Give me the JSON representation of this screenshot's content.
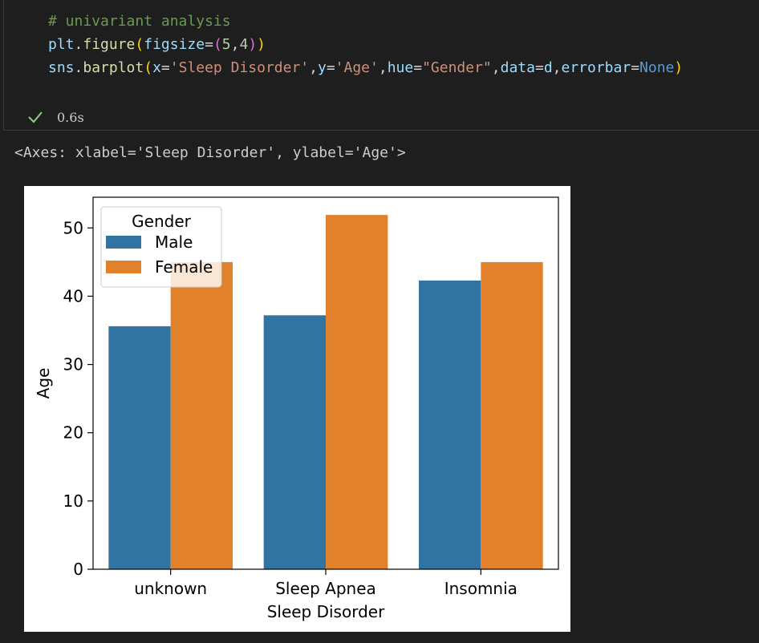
{
  "cell": {
    "code_lines": [
      [
        {
          "t": "# univariant analysis",
          "c": "comment"
        }
      ],
      [
        {
          "t": "plt",
          "c": "var"
        },
        {
          "t": ".",
          "c": "op"
        },
        {
          "t": "figure",
          "c": "func"
        },
        {
          "t": "(",
          "c": "paren1"
        },
        {
          "t": "figsize",
          "c": "var"
        },
        {
          "t": "=",
          "c": "op"
        },
        {
          "t": "(",
          "c": "paren2"
        },
        {
          "t": "5",
          "c": "num"
        },
        {
          "t": ",",
          "c": "op"
        },
        {
          "t": "4",
          "c": "num"
        },
        {
          "t": ")",
          "c": "paren2"
        },
        {
          "t": ")",
          "c": "paren1"
        }
      ],
      [
        {
          "t": "sns",
          "c": "var"
        },
        {
          "t": ".",
          "c": "op"
        },
        {
          "t": "barplot",
          "c": "func"
        },
        {
          "t": "(",
          "c": "paren1"
        },
        {
          "t": "x",
          "c": "var"
        },
        {
          "t": "=",
          "c": "op"
        },
        {
          "t": "'Sleep Disorder'",
          "c": "str"
        },
        {
          "t": ",",
          "c": "op"
        },
        {
          "t": "y",
          "c": "var"
        },
        {
          "t": "=",
          "c": "op"
        },
        {
          "t": "'Age'",
          "c": "str"
        },
        {
          "t": ",",
          "c": "op"
        },
        {
          "t": "hue",
          "c": "var"
        },
        {
          "t": "=",
          "c": "op"
        },
        {
          "t": "\"Gender\"",
          "c": "str"
        },
        {
          "t": ",",
          "c": "op"
        },
        {
          "t": "data",
          "c": "var"
        },
        {
          "t": "=",
          "c": "op"
        },
        {
          "t": "d",
          "c": "var"
        },
        {
          "t": ",",
          "c": "op"
        },
        {
          "t": "errorbar",
          "c": "var"
        },
        {
          "t": "=",
          "c": "op"
        },
        {
          "t": "None",
          "c": "kw"
        },
        {
          "t": ")",
          "c": "paren1"
        }
      ]
    ],
    "status_icon": "checkmark-icon",
    "exec_time": "0.6s"
  },
  "output": {
    "repr": "<Axes: xlabel='Sleep Disorder', ylabel='Age'>"
  },
  "chart_data": {
    "type": "bar",
    "categories": [
      "unknown",
      "Sleep Apnea",
      "Insomnia"
    ],
    "series": [
      {
        "name": "Male",
        "values": [
          35.6,
          37.2,
          42.3
        ],
        "color": "#3274a1"
      },
      {
        "name": "Female",
        "values": [
          45.0,
          51.9,
          45.0
        ],
        "color": "#e1812c"
      }
    ],
    "xlabel": "Sleep Disorder",
    "ylabel": "Age",
    "ylim": [
      0,
      54.5
    ],
    "yticks": [
      0,
      10,
      20,
      30,
      40,
      50
    ],
    "legend_title": "Gender",
    "legend_position": "top-left",
    "grid": false
  }
}
